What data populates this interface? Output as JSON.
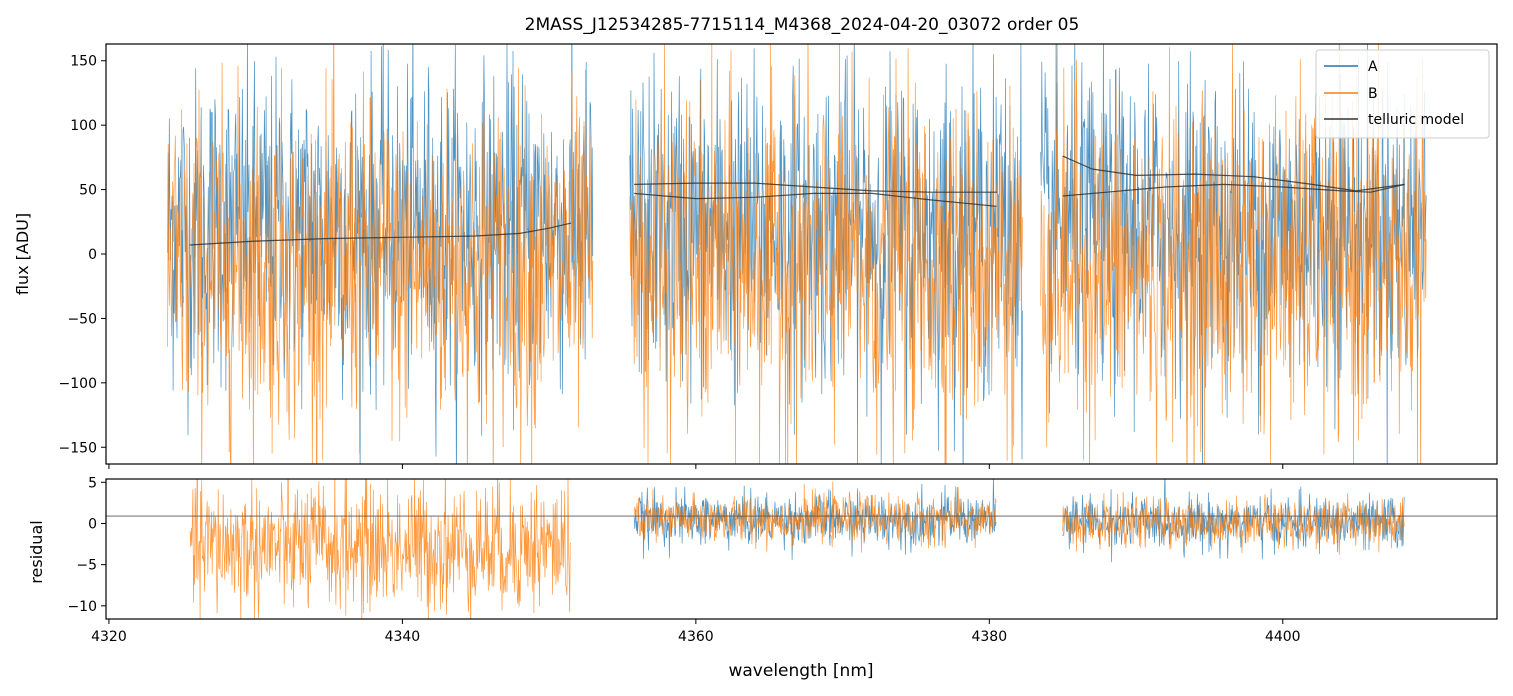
{
  "chart_data": [
    {
      "type": "line",
      "title": "2MASS_J12534285-7715114_M4368_2024-04-20_03072  order 05",
      "xlabel": "",
      "ylabel": "flux [ADU]",
      "xlim": [
        4319.8,
        4414.6
      ],
      "ylim": [
        -163,
        163
      ],
      "yticks": [
        -150,
        -100,
        -50,
        0,
        50,
        100,
        150
      ],
      "yticklabels": [
        "−150",
        "−100",
        "−50",
        "0",
        "50",
        "100",
        "150"
      ],
      "legend_position": "top-right",
      "segments": [
        [
          4324.0,
          4353.0
        ],
        [
          4355.5,
          4382.3
        ],
        [
          4383.5,
          4409.8
        ]
      ],
      "series": [
        {
          "name": "A",
          "color": "#1f77b4",
          "center": 20,
          "noise": 68
        },
        {
          "name": "B",
          "color": "#ff7f0e",
          "center": -10,
          "noise": 72
        }
      ],
      "telluric_model": {
        "name": "telluric model",
        "color": "#333333",
        "curves": [
          {
            "x": [
              4325.5,
              4330,
              4335,
              4340,
              4345,
              4348,
              4350,
              4351.5
            ],
            "y": [
              7,
              10,
              12,
              13,
              14,
              16,
              20,
              24
            ]
          },
          {
            "x": [
              4355.8,
              4360,
              4364,
              4368,
              4372,
              4376,
              4380.5
            ],
            "y": [
              47,
              43,
              44,
              47,
              47,
              42,
              37
            ]
          },
          {
            "x": [
              4355.8,
              4360,
              4364,
              4368,
              4372,
              4376,
              4380.5
            ],
            "y": [
              54,
              55,
              55,
              52,
              49,
              48,
              48
            ]
          },
          {
            "x": [
              4385.0,
              4388,
              4392,
              4396,
              4400,
              4404,
              4406,
              4408.3
            ],
            "y": [
              45,
              48,
              52,
              54,
              52,
              49,
              48,
              54
            ]
          },
          {
            "x": [
              4385.0,
              4387,
              4390,
              4394,
              4398,
              4402,
              4405,
              4408.3
            ],
            "y": [
              76,
              66,
              61,
              62,
              60,
              54,
              49,
              54
            ]
          }
        ]
      }
    },
    {
      "type": "line",
      "title": "",
      "xlabel": "wavelength [nm]",
      "ylabel": "residual",
      "xlim": [
        4319.8,
        4414.6
      ],
      "ylim": [
        -11.6,
        5.4
      ],
      "yticks": [
        -10,
        -5,
        0,
        5
      ],
      "yticklabels": [
        "−10",
        "−5",
        "0",
        "5"
      ],
      "xticks": [
        4320,
        4340,
        4360,
        4380,
        4400
      ],
      "xticklabels": [
        "4320",
        "4340",
        "4360",
        "4380",
        "4400"
      ],
      "reference_line_y": 0.9,
      "segments": [
        {
          "range": [
            4325.5,
            4351.5
          ],
          "center": -2.8,
          "noise": 4.5,
          "series": [
            "B"
          ]
        },
        {
          "range": [
            4355.8,
            4380.5
          ],
          "center": 0.5,
          "noise": 1.6,
          "series": [
            "A",
            "B"
          ]
        },
        {
          "range": [
            4385.0,
            4408.3
          ],
          "center": 0.1,
          "noise": 1.6,
          "series": [
            "A",
            "B"
          ]
        }
      ]
    }
  ]
}
